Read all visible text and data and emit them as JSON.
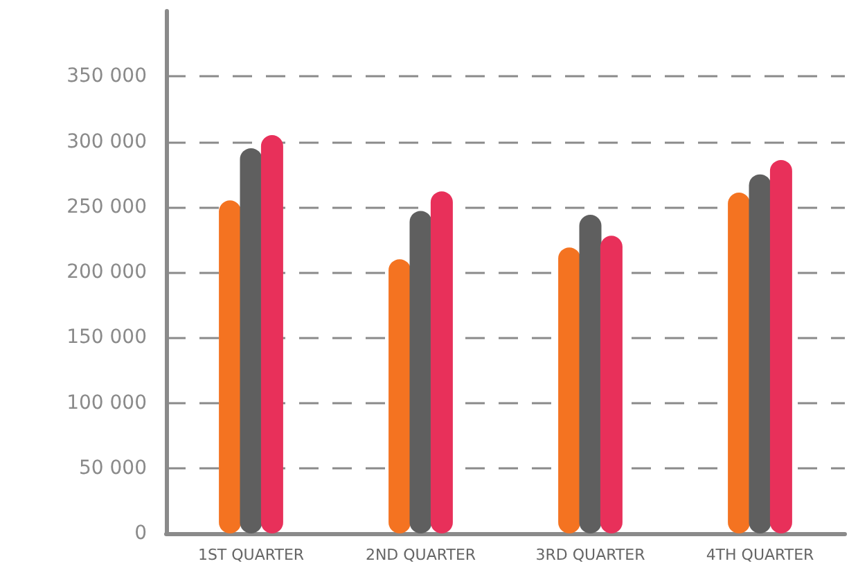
{
  "chart_data": {
    "type": "bar",
    "categories": [
      "1ST QUARTER",
      "2ND QUARTER",
      "3RD QUARTER",
      "4TH QUARTER"
    ],
    "series": [
      {
        "color": "#f47321",
        "values": [
          255000,
          210000,
          219000,
          261000
        ]
      },
      {
        "color": "#5f5f5f",
        "values": [
          295000,
          247000,
          244000,
          275000
        ]
      },
      {
        "color": "#e8305a",
        "values": [
          305000,
          262000,
          228000,
          286000
        ]
      }
    ],
    "ylim": [
      0,
      400000
    ],
    "yticks": [
      {
        "value": 0,
        "label": "0"
      },
      {
        "value": 50000,
        "label": "50 000"
      },
      {
        "value": 100000,
        "label": "100 000"
      },
      {
        "value": 150000,
        "label": "150 000"
      },
      {
        "value": 200000,
        "label": "200 000"
      },
      {
        "value": 250000,
        "label": "250 000"
      },
      {
        "value": 300000,
        "label": "300 000"
      },
      {
        "value": 350000,
        "label": "350 000"
      }
    ],
    "grid": "y"
  }
}
